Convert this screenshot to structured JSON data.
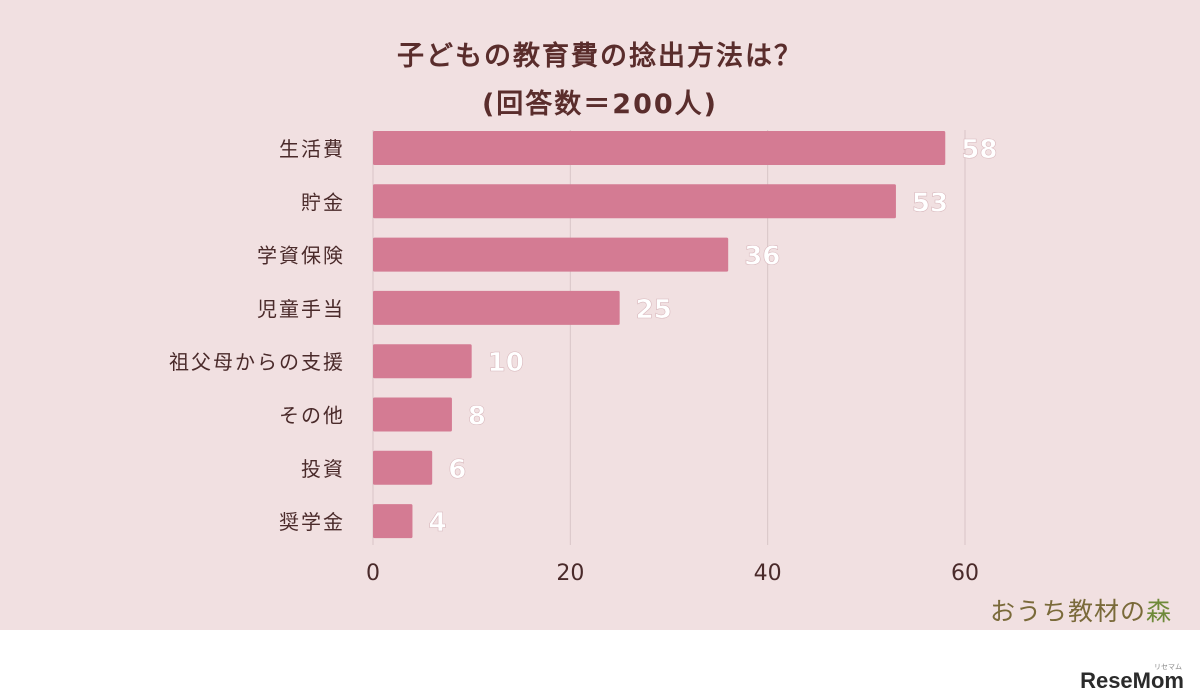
{
  "chart_data": {
    "type": "bar",
    "orientation": "horizontal",
    "title": "子どもの教育費の捻出方法は？",
    "subtitle": "(回答数＝200人)",
    "categories": [
      "生活費",
      "貯金",
      "学資保険",
      "児童手当",
      "祖父母からの支援",
      "その他",
      "投資",
      "奨学金"
    ],
    "values": [
      58,
      53,
      36,
      25,
      10,
      8,
      6,
      4
    ],
    "xlim": [
      0,
      60
    ],
    "x_ticks": [
      0,
      20,
      40,
      60
    ],
    "grid": "vertical",
    "bar_color": "#d47b93",
    "data_labels": true
  },
  "brand": {
    "part1": "おうち教材の",
    "part2": "森"
  },
  "watermark": {
    "text": "ReseMom",
    "tiny": "リセマム"
  }
}
